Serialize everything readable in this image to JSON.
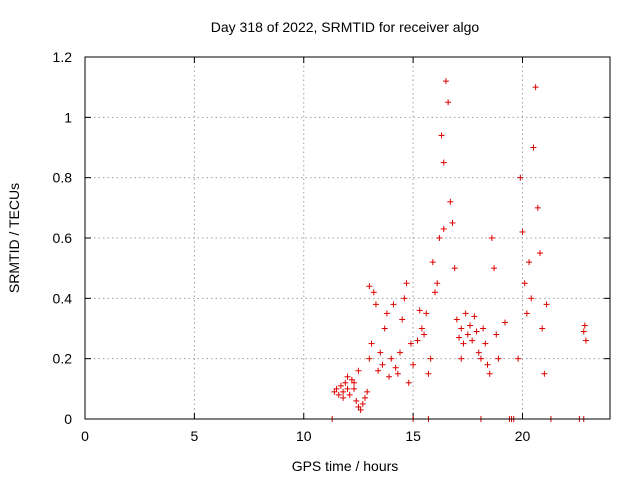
{
  "chart_data": {
    "type": "scatter",
    "title": "Day 318 of 2022, SRMTID for receiver algo",
    "xlabel": "GPS time / hours",
    "ylabel": "SRMTID / TECUs",
    "xlim": [
      0,
      24
    ],
    "ylim": [
      0,
      1.2
    ],
    "xticks": [
      "0",
      "5",
      "10",
      "15",
      "20"
    ],
    "xtick_values": [
      0,
      5,
      10,
      15,
      20
    ],
    "yticks": [
      "0",
      "0.2",
      "0.4",
      "0.6",
      "0.8",
      "1",
      "1.2"
    ],
    "ytick_values": [
      0,
      0.2,
      0.4,
      0.6,
      0.8,
      1.0,
      1.2
    ],
    "grid": true,
    "marker": "+",
    "series_color": "#dd0000",
    "series": [
      {
        "name": "SRMTID",
        "points": [
          [
            11.3,
            0.0
          ],
          [
            15.0,
            0.0
          ],
          [
            15.7,
            0.0
          ],
          [
            18.1,
            0.0
          ],
          [
            19.4,
            0.0
          ],
          [
            19.5,
            0.0
          ],
          [
            19.6,
            0.0
          ],
          [
            21.3,
            0.0
          ],
          [
            22.6,
            0.0
          ],
          [
            22.8,
            0.0
          ],
          [
            11.4,
            0.09
          ],
          [
            11.5,
            0.1
          ],
          [
            11.6,
            0.08
          ],
          [
            11.7,
            0.11
          ],
          [
            11.8,
            0.09
          ],
          [
            11.9,
            0.12
          ],
          [
            12.0,
            0.1
          ],
          [
            12.1,
            0.08
          ],
          [
            12.2,
            0.13
          ],
          [
            12.3,
            0.1
          ],
          [
            12.4,
            0.06
          ],
          [
            12.5,
            0.04
          ],
          [
            12.6,
            0.03
          ],
          [
            12.7,
            0.05
          ],
          [
            12.8,
            0.07
          ],
          [
            12.9,
            0.09
          ],
          [
            12.5,
            0.16
          ],
          [
            12.3,
            0.12
          ],
          [
            12.0,
            0.14
          ],
          [
            11.8,
            0.07
          ],
          [
            13.0,
            0.2
          ],
          [
            13.1,
            0.25
          ],
          [
            13.2,
            0.42
          ],
          [
            13.0,
            0.44
          ],
          [
            13.3,
            0.38
          ],
          [
            13.4,
            0.16
          ],
          [
            13.5,
            0.22
          ],
          [
            13.6,
            0.18
          ],
          [
            13.7,
            0.3
          ],
          [
            13.8,
            0.35
          ],
          [
            13.9,
            0.14
          ],
          [
            14.0,
            0.2
          ],
          [
            14.1,
            0.38
          ],
          [
            14.2,
            0.17
          ],
          [
            14.3,
            0.15
          ],
          [
            14.4,
            0.22
          ],
          [
            14.5,
            0.33
          ],
          [
            14.6,
            0.4
          ],
          [
            14.7,
            0.45
          ],
          [
            14.8,
            0.12
          ],
          [
            14.9,
            0.25
          ],
          [
            15.0,
            0.18
          ],
          [
            15.2,
            0.26
          ],
          [
            15.3,
            0.36
          ],
          [
            15.4,
            0.3
          ],
          [
            15.5,
            0.28
          ],
          [
            15.6,
            0.35
          ],
          [
            15.7,
            0.15
          ],
          [
            15.8,
            0.2
          ],
          [
            15.9,
            0.52
          ],
          [
            16.0,
            0.42
          ],
          [
            16.1,
            0.45
          ],
          [
            16.2,
            0.6
          ],
          [
            16.3,
            0.94
          ],
          [
            16.4,
            0.85
          ],
          [
            16.5,
            1.12
          ],
          [
            16.6,
            1.05
          ],
          [
            16.7,
            0.72
          ],
          [
            16.8,
            0.65
          ],
          [
            16.9,
            0.5
          ],
          [
            17.0,
            0.33
          ],
          [
            17.1,
            0.27
          ],
          [
            17.2,
            0.3
          ],
          [
            17.3,
            0.25
          ],
          [
            17.4,
            0.35
          ],
          [
            17.5,
            0.28
          ],
          [
            17.6,
            0.31
          ],
          [
            17.7,
            0.26
          ],
          [
            17.8,
            0.34
          ],
          [
            17.9,
            0.29
          ],
          [
            18.0,
            0.22
          ],
          [
            18.1,
            0.2
          ],
          [
            18.2,
            0.3
          ],
          [
            18.3,
            0.25
          ],
          [
            18.4,
            0.18
          ],
          [
            18.5,
            0.15
          ],
          [
            18.6,
            0.6
          ],
          [
            18.7,
            0.5
          ],
          [
            18.8,
            0.28
          ],
          [
            18.9,
            0.2
          ],
          [
            19.8,
            0.2
          ],
          [
            19.9,
            0.8
          ],
          [
            20.0,
            0.62
          ],
          [
            20.1,
            0.45
          ],
          [
            20.2,
            0.35
          ],
          [
            20.3,
            0.52
          ],
          [
            20.4,
            0.4
          ],
          [
            20.5,
            0.9
          ],
          [
            20.6,
            1.1
          ],
          [
            20.7,
            0.7
          ],
          [
            20.8,
            0.55
          ],
          [
            20.9,
            0.3
          ],
          [
            21.0,
            0.15
          ],
          [
            21.1,
            0.38
          ],
          [
            22.8,
            0.29
          ],
          [
            22.85,
            0.31
          ],
          [
            22.9,
            0.26
          ],
          [
            16.4,
            0.63
          ],
          [
            17.2,
            0.2
          ],
          [
            19.2,
            0.32
          ]
        ]
      }
    ]
  }
}
